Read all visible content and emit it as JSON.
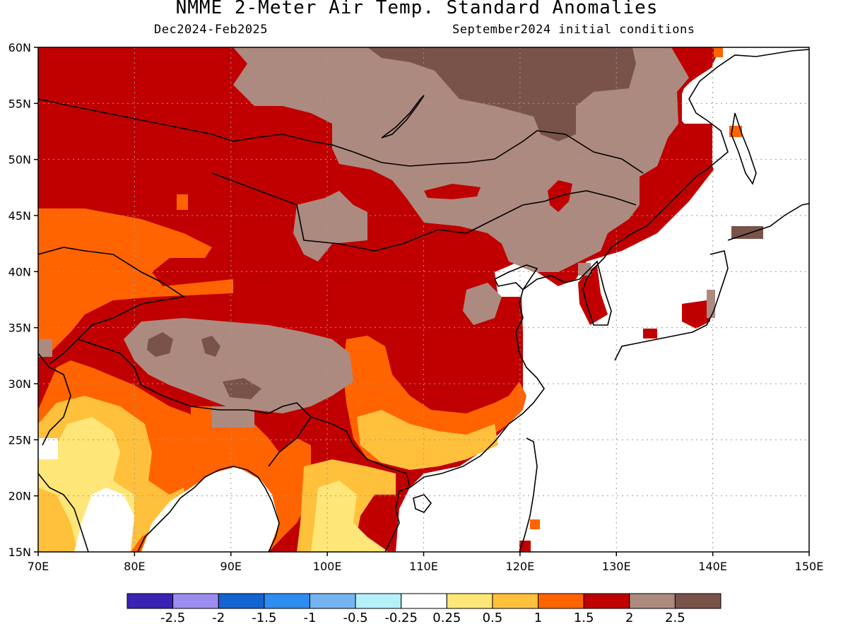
{
  "title": "NMME 2-Meter Air Temp. Standard Anomalies",
  "subtitle_left": "Dec2024-Feb2025",
  "subtitle_right": "September2024 initial conditions",
  "map": {
    "lon_range": [
      70,
      150
    ],
    "lat_range": [
      15,
      60
    ],
    "lat_labels": [
      "15N",
      "20N",
      "25N",
      "30N",
      "35N",
      "40N",
      "45N",
      "50N",
      "55N",
      "60N"
    ],
    "lon_labels": [
      "70E",
      "80E",
      "90E",
      "100E",
      "110E",
      "120E",
      "130E",
      "140E",
      "150E"
    ]
  },
  "colorbar": {
    "colors": [
      "#3a22b4",
      "#9b8cf0",
      "#1463d2",
      "#2f8cf0",
      "#74b4f0",
      "#b4f0fa",
      "#ffffff",
      "#ffe678",
      "#ffc03c",
      "#ff6400",
      "#c00000",
      "#ad8a80",
      "#79534a"
    ],
    "labels": [
      "-2.5",
      "-2",
      "-1.5",
      "-1",
      "-0.5",
      "-0.25",
      "0.25",
      "0.5",
      "1",
      "1.5",
      "2",
      "2.5"
    ]
  },
  "colors": {
    "white": "#ffffff",
    "yellow": "#ffe678",
    "light_orange": "#ffc03c",
    "orange": "#ff6400",
    "red": "#c00000",
    "tan": "#ad8a80",
    "brown": "#79534a"
  }
}
